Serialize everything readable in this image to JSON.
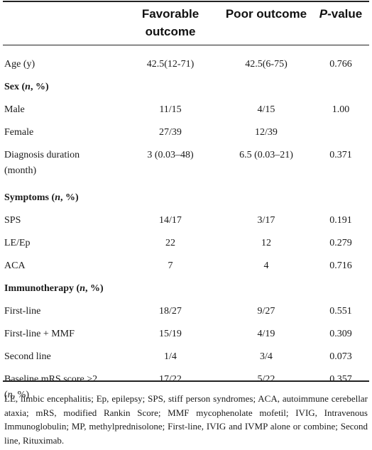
{
  "header": {
    "col1": "",
    "col2_line1": "Favorable",
    "col2_line2": "outcome",
    "col3": "Poor outcome",
    "col4_italic": "P",
    "col4_rest": "-value"
  },
  "rows": [
    {
      "label": "Age (y)",
      "v1": "42.5(12-71)",
      "v2": "42.5(6-75)",
      "v3": "0.766"
    },
    {
      "label": "Sex",
      "label_suffix_pre": " (",
      "label_italic": "n",
      "label_suffix_post": ", %)",
      "section": true
    },
    {
      "label": "Male",
      "v1": "11/15",
      "v2": "4/15",
      "v3": "1.00"
    },
    {
      "label": "Female",
      "v1": "27/39",
      "v2": "12/39",
      "v3": ""
    },
    {
      "label": "Diagnosis duration",
      "label_cont": "(month)",
      "v1": "3 (0.03–48)",
      "v2": "6.5 (0.03–21)",
      "v3": "0.371"
    },
    {
      "label": "Symptoms",
      "label_suffix_pre": " (",
      "label_italic": "n",
      "label_suffix_post": ", %)",
      "section": true
    },
    {
      "label": "SPS",
      "v1": "14/17",
      "v2": "3/17",
      "v3": "0.191"
    },
    {
      "label": "LE/Ep",
      "v1": "22",
      "v2": "12",
      "v3": "0.279"
    },
    {
      "label": "ACA",
      "v1": "7",
      "v2": "4",
      "v3": "0.716"
    },
    {
      "label": "Immunotherapy",
      "label_suffix_pre": " (",
      "label_italic": "n",
      "label_suffix_post": ", %)",
      "section": true
    },
    {
      "label": "First-line",
      "v1": "18/27",
      "v2": "9/27",
      "v3": "0.551"
    },
    {
      "label": "First-line + MMF",
      "v1": "15/19",
      "v2": "4/19",
      "v3": "0.309"
    },
    {
      "label": "Second line",
      "v1": "1/4",
      "v2": "3/4",
      "v3": "0.073"
    },
    {
      "label": "Baseline mRS score >2",
      "label_cont_pre": "(",
      "label_cont_italic": "n",
      "label_cont_post": ", %)",
      "v1": "17/22",
      "v2": "5/22",
      "v3": "0.357"
    }
  ],
  "footnote": "LE, limbic encephalitis; Ep, epilepsy; SPS, stiff person syndromes; ACA, autoimmune cerebellar ataxia; mRS, modified Rankin Score; MMF mycophenolate mofetil; IVIG, Intravenous Immunoglobulin; MP, methylprednisolone; First-line, IVIG and IVMP alone or combine; Second line, Rituximab."
}
